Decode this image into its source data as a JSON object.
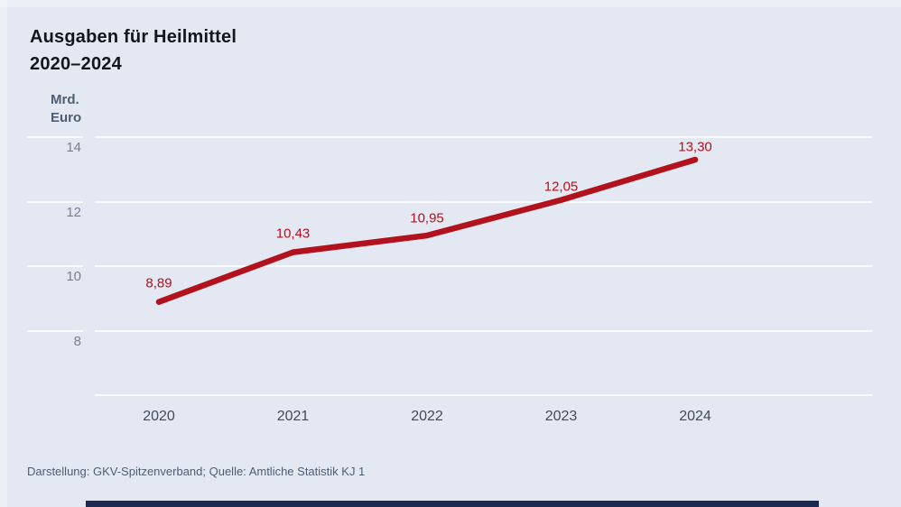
{
  "header": {
    "title_line1": "Ausgaben für Heilmittel",
    "title_line2": "2020–2024"
  },
  "axis": {
    "unit_line1": "Mrd.",
    "unit_line2": "Euro",
    "unit_label": "Mrd. Euro"
  },
  "chart_data": {
    "type": "line",
    "title": "Ausgaben für Heilmittel 2020–2024",
    "ylabel": "Mrd. Euro",
    "xlabel": "",
    "categories": [
      "2020",
      "2021",
      "2022",
      "2023",
      "2024"
    ],
    "values": [
      8.89,
      10.43,
      10.95,
      12.05,
      13.3
    ],
    "value_labels": [
      "8,89",
      "10,43",
      "10,95",
      "12,05",
      "13,30"
    ],
    "yticks": [
      14,
      12,
      10,
      8
    ],
    "ylim": [
      6,
      14
    ],
    "grid": true,
    "legend_position": "none",
    "line_color": "#b1121b"
  },
  "footer": {
    "source": "Darstellung: GKV-Spitzenverband; Quelle: Amtliche Statistik KJ 1"
  },
  "colors": {
    "background": "#e3e8f2",
    "line": "#b1121b",
    "value_label": "#b1121b",
    "grid_line": "#fafbfd",
    "title_text": "#15151e",
    "ytick_text": "#78828f",
    "xtick_text": "#414b5a",
    "unit_text": "#4e5e72",
    "source_text": "#4e5e72",
    "bottom_bar": "#1d2a4f"
  }
}
